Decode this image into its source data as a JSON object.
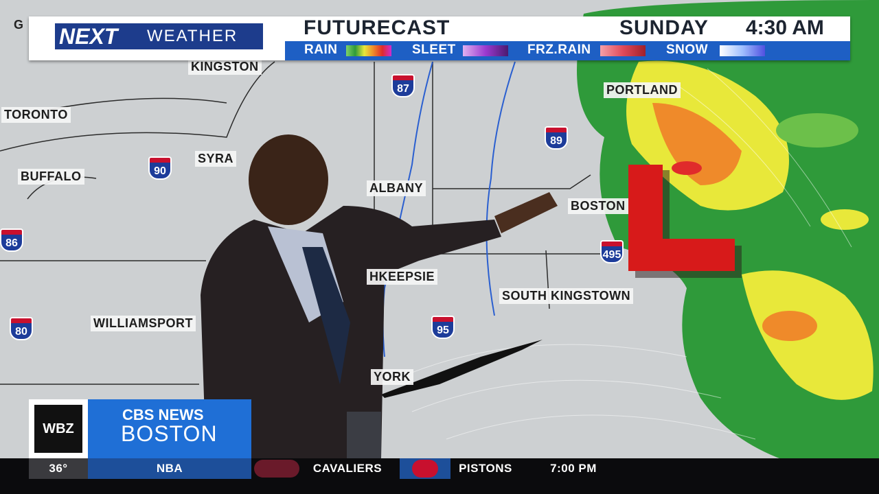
{
  "header": {
    "brand_next": "NEXT",
    "brand_weather": "WEATHER",
    "title": "FUTURECAST",
    "day": "SUNDAY",
    "time": "4:30 AM",
    "legend": [
      "RAIN",
      "SLEET",
      "FRZ.RAIN",
      "SNOW"
    ]
  },
  "map": {
    "partial_label": "G",
    "cities": [
      "KINGSTON",
      "TORONTO",
      "BUFFALO",
      "SYRA",
      "ALBANY",
      "PORTLAND",
      "BOSTON",
      "SOUTH KINGSTOWN",
      "WILLIAMSPORT",
      "HKEEPSIE",
      "YORK"
    ],
    "interstates": [
      "87",
      "89",
      "90",
      "86",
      "495",
      "80",
      "95"
    ],
    "low_marker": "L"
  },
  "footer": {
    "station": "WBZ",
    "network": "CBS NEWS",
    "city": "BOSTON",
    "temperature": "36°",
    "ticker": {
      "league": "NBA",
      "team_1": "CAVALIERS",
      "team_2": "PISTONS",
      "time": "7:00 PM"
    }
  }
}
